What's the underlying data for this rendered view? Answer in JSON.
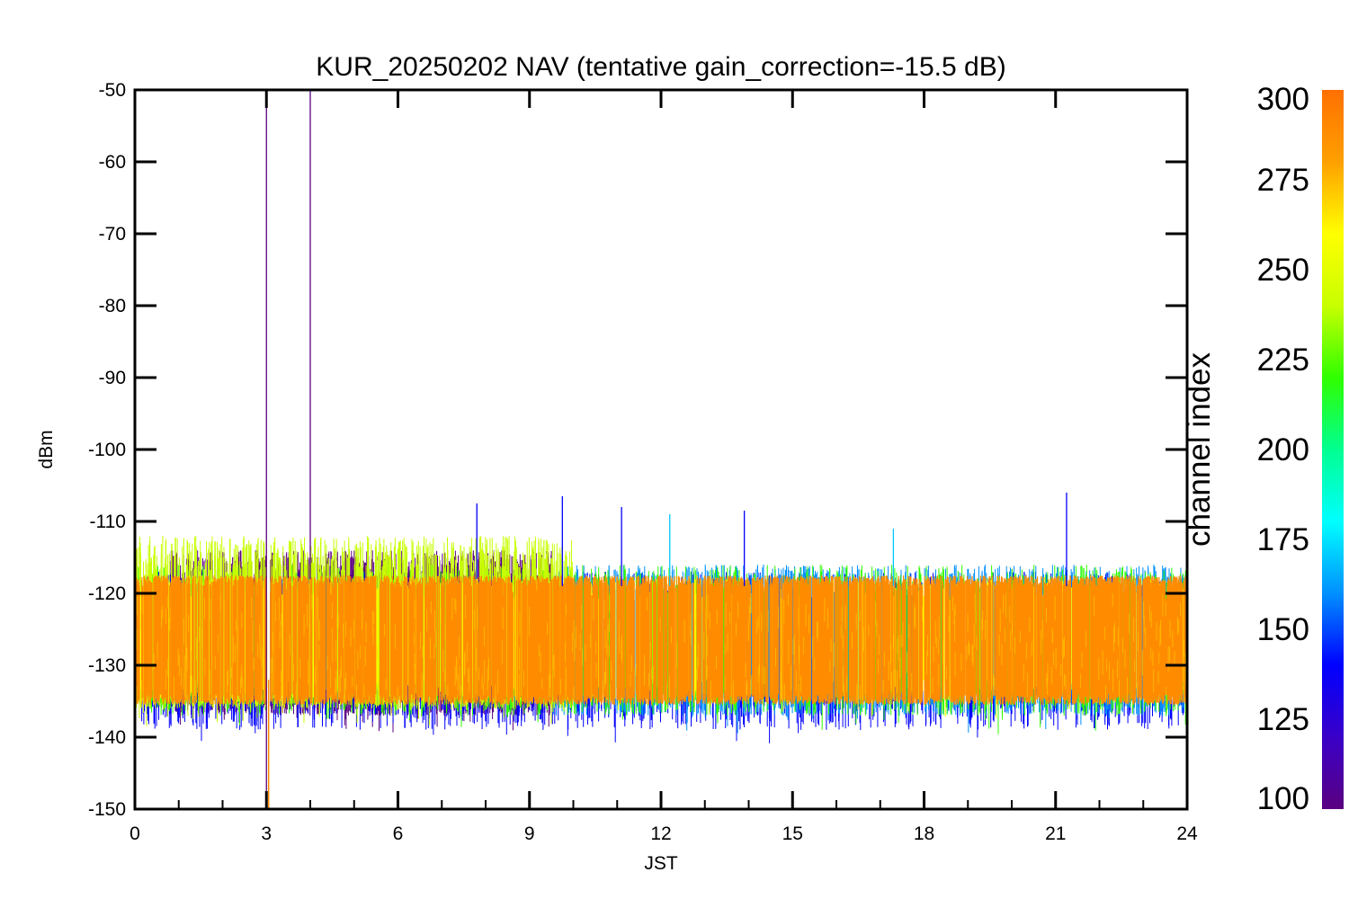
{
  "chart_data": {
    "type": "line",
    "title": "KUR_20250202 NAV (tentative gain_correction=-15.5 dB)",
    "xlabel": "JST",
    "ylabel": "dBm",
    "xlim": [
      0,
      24
    ],
    "ylim": [
      -150,
      -50
    ],
    "xticks": [
      0,
      3,
      6,
      9,
      12,
      15,
      18,
      21,
      24
    ],
    "xtick_labels": [
      "0",
      "3",
      "6",
      "9",
      "12",
      "15",
      "18",
      "21",
      "24"
    ],
    "yticks": [
      -50,
      -60,
      -70,
      -80,
      -90,
      -100,
      -110,
      -120,
      -130,
      -140,
      -150
    ],
    "ytick_labels": [
      "-50",
      "-60",
      "-70",
      "-80",
      "-90",
      "-100",
      "-110",
      "-120",
      "-130",
      "-140",
      "-150"
    ],
    "grid": false,
    "colorbar": {
      "label": "channel index",
      "range": [
        100,
        300
      ],
      "ticks": [
        100,
        125,
        150,
        175,
        200,
        225,
        250,
        275,
        300
      ],
      "tick_labels": [
        "100",
        "125",
        "150",
        "175",
        "200",
        "225",
        "250",
        "275",
        "300"
      ],
      "colors": [
        "#5a0080",
        "#3a00c8",
        "#0000ff",
        "#0090ff",
        "#00ffff",
        "#00ff90",
        "#30ff00",
        "#c8ff00",
        "#ffff00",
        "#ffa000",
        "#ff7000"
      ]
    },
    "noise_band": {
      "core_range_dbm": [
        -134,
        -119
      ],
      "envelope_range_dbm": [
        -142,
        -106
      ],
      "dominant_channel_color": "#ff8c00"
    },
    "gap": {
      "x": 3.05
    },
    "spikes": [
      {
        "x": 3.0,
        "y_top": -50,
        "y_bottom": -150,
        "color": "#5a0080"
      },
      {
        "x": 3.05,
        "y_top": -132,
        "y_bottom": -150,
        "color": "#ff8c00"
      },
      {
        "x": 4.0,
        "y_top": -50,
        "y_bottom": -118,
        "color": "#5a0080"
      },
      {
        "x": 7.8,
        "y_top": -107.5,
        "y_bottom": -118,
        "color": "#0000ff"
      },
      {
        "x": 9.75,
        "y_top": -106.5,
        "y_bottom": -119,
        "color": "#0000ff"
      },
      {
        "x": 11.1,
        "y_top": -108,
        "y_bottom": -119,
        "color": "#0000ff"
      },
      {
        "x": 12.2,
        "y_top": -109,
        "y_bottom": -119,
        "color": "#00c8ff"
      },
      {
        "x": 13.9,
        "y_top": -108.5,
        "y_bottom": -119,
        "color": "#0000ff"
      },
      {
        "x": 17.3,
        "y_top": -111,
        "y_bottom": -119,
        "color": "#00c8ff"
      },
      {
        "x": 21.25,
        "y_top": -106,
        "y_bottom": -119,
        "color": "#0000ff"
      }
    ]
  }
}
